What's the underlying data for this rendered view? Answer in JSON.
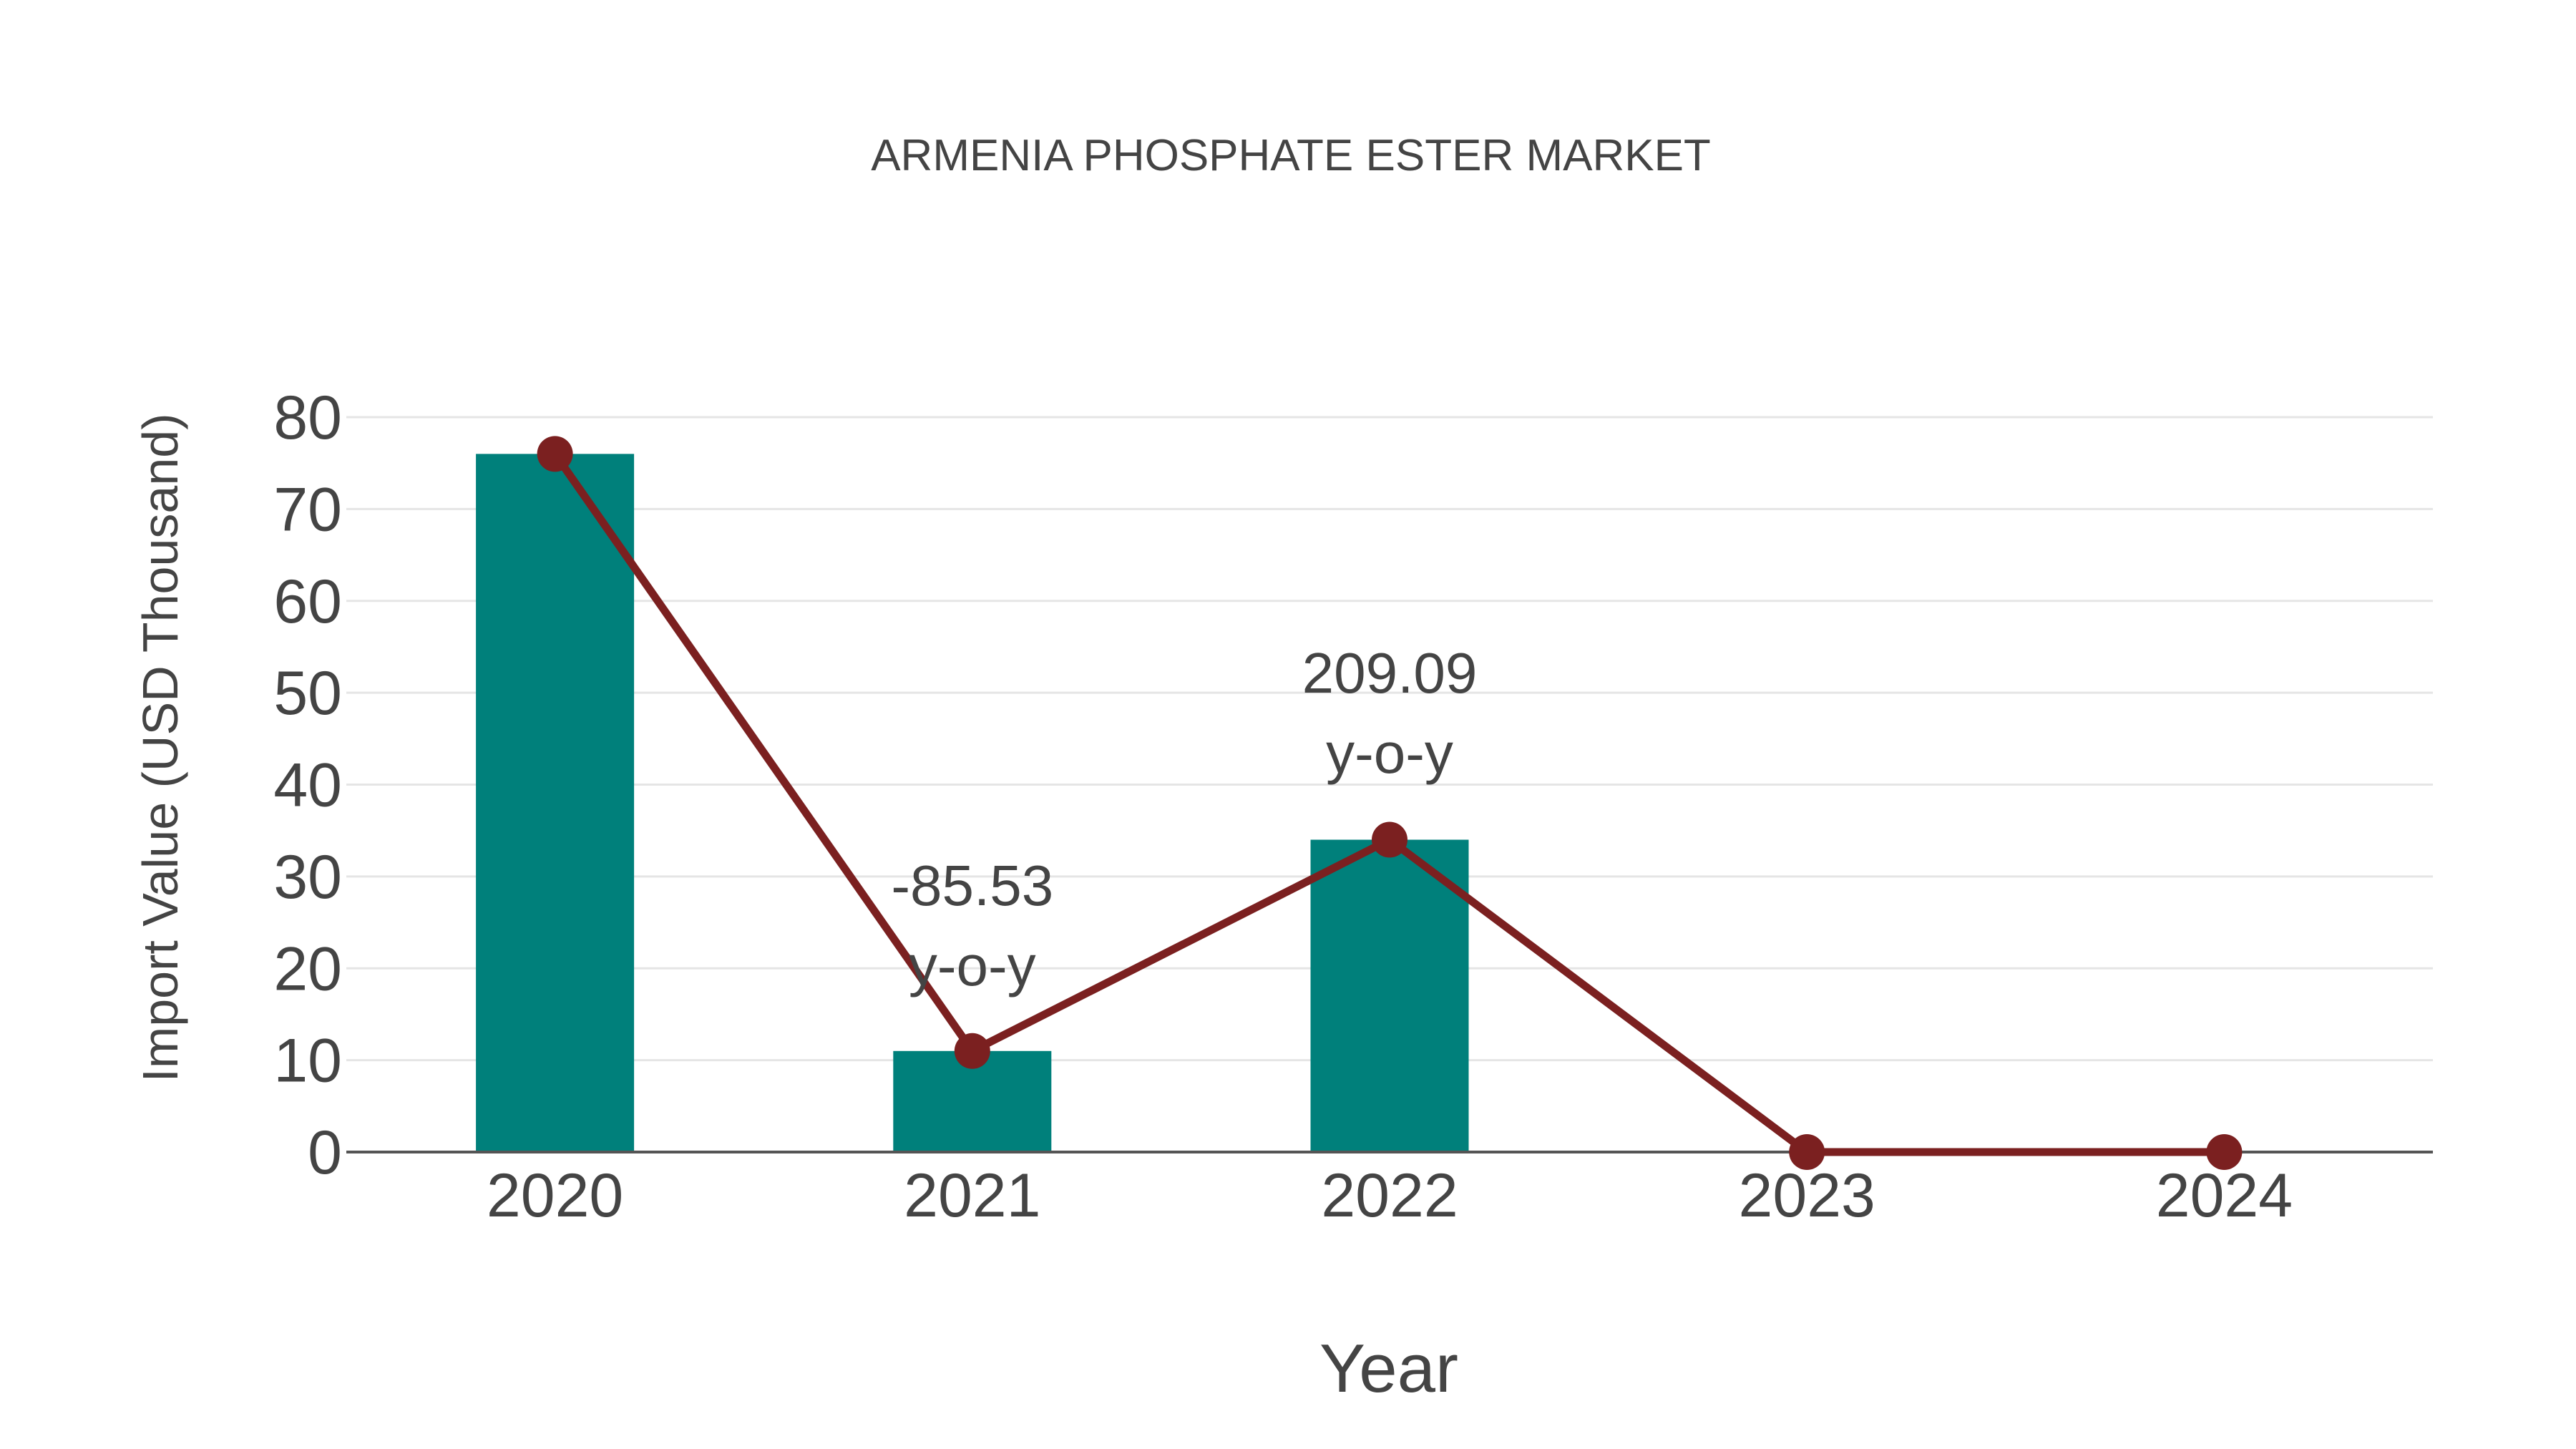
{
  "title": "ARMENIA PHOSPHATE ESTER MARKET",
  "colors": {
    "bar": "#00807b",
    "line": "#7b2020",
    "text": "#444444",
    "grid": "#e5e5e5"
  },
  "chart_data": {
    "type": "bar",
    "title": "ARMENIA PHOSPHATE ESTER MARKET",
    "xlabel": "Year",
    "ylabel": "Import Value (USD Thousand)",
    "categories": [
      "2020",
      "2021",
      "2022",
      "2023",
      "2024"
    ],
    "series": [
      {
        "name": "Import Value (bar)",
        "type": "bar",
        "values": [
          76,
          11,
          34,
          0,
          0
        ]
      },
      {
        "name": "Import Value (line)",
        "type": "line",
        "values": [
          76,
          11,
          34,
          0,
          0
        ]
      }
    ],
    "annotations": [
      {
        "category": "2021",
        "line1": "-85.53",
        "line2": "y-o-y"
      },
      {
        "category": "2022",
        "line1": "209.09",
        "line2": "y-o-y"
      }
    ],
    "ylim": [
      0,
      80
    ],
    "yticks": [
      0,
      10,
      20,
      30,
      40,
      50,
      60,
      70,
      80
    ],
    "grid": true,
    "legend": "none"
  }
}
